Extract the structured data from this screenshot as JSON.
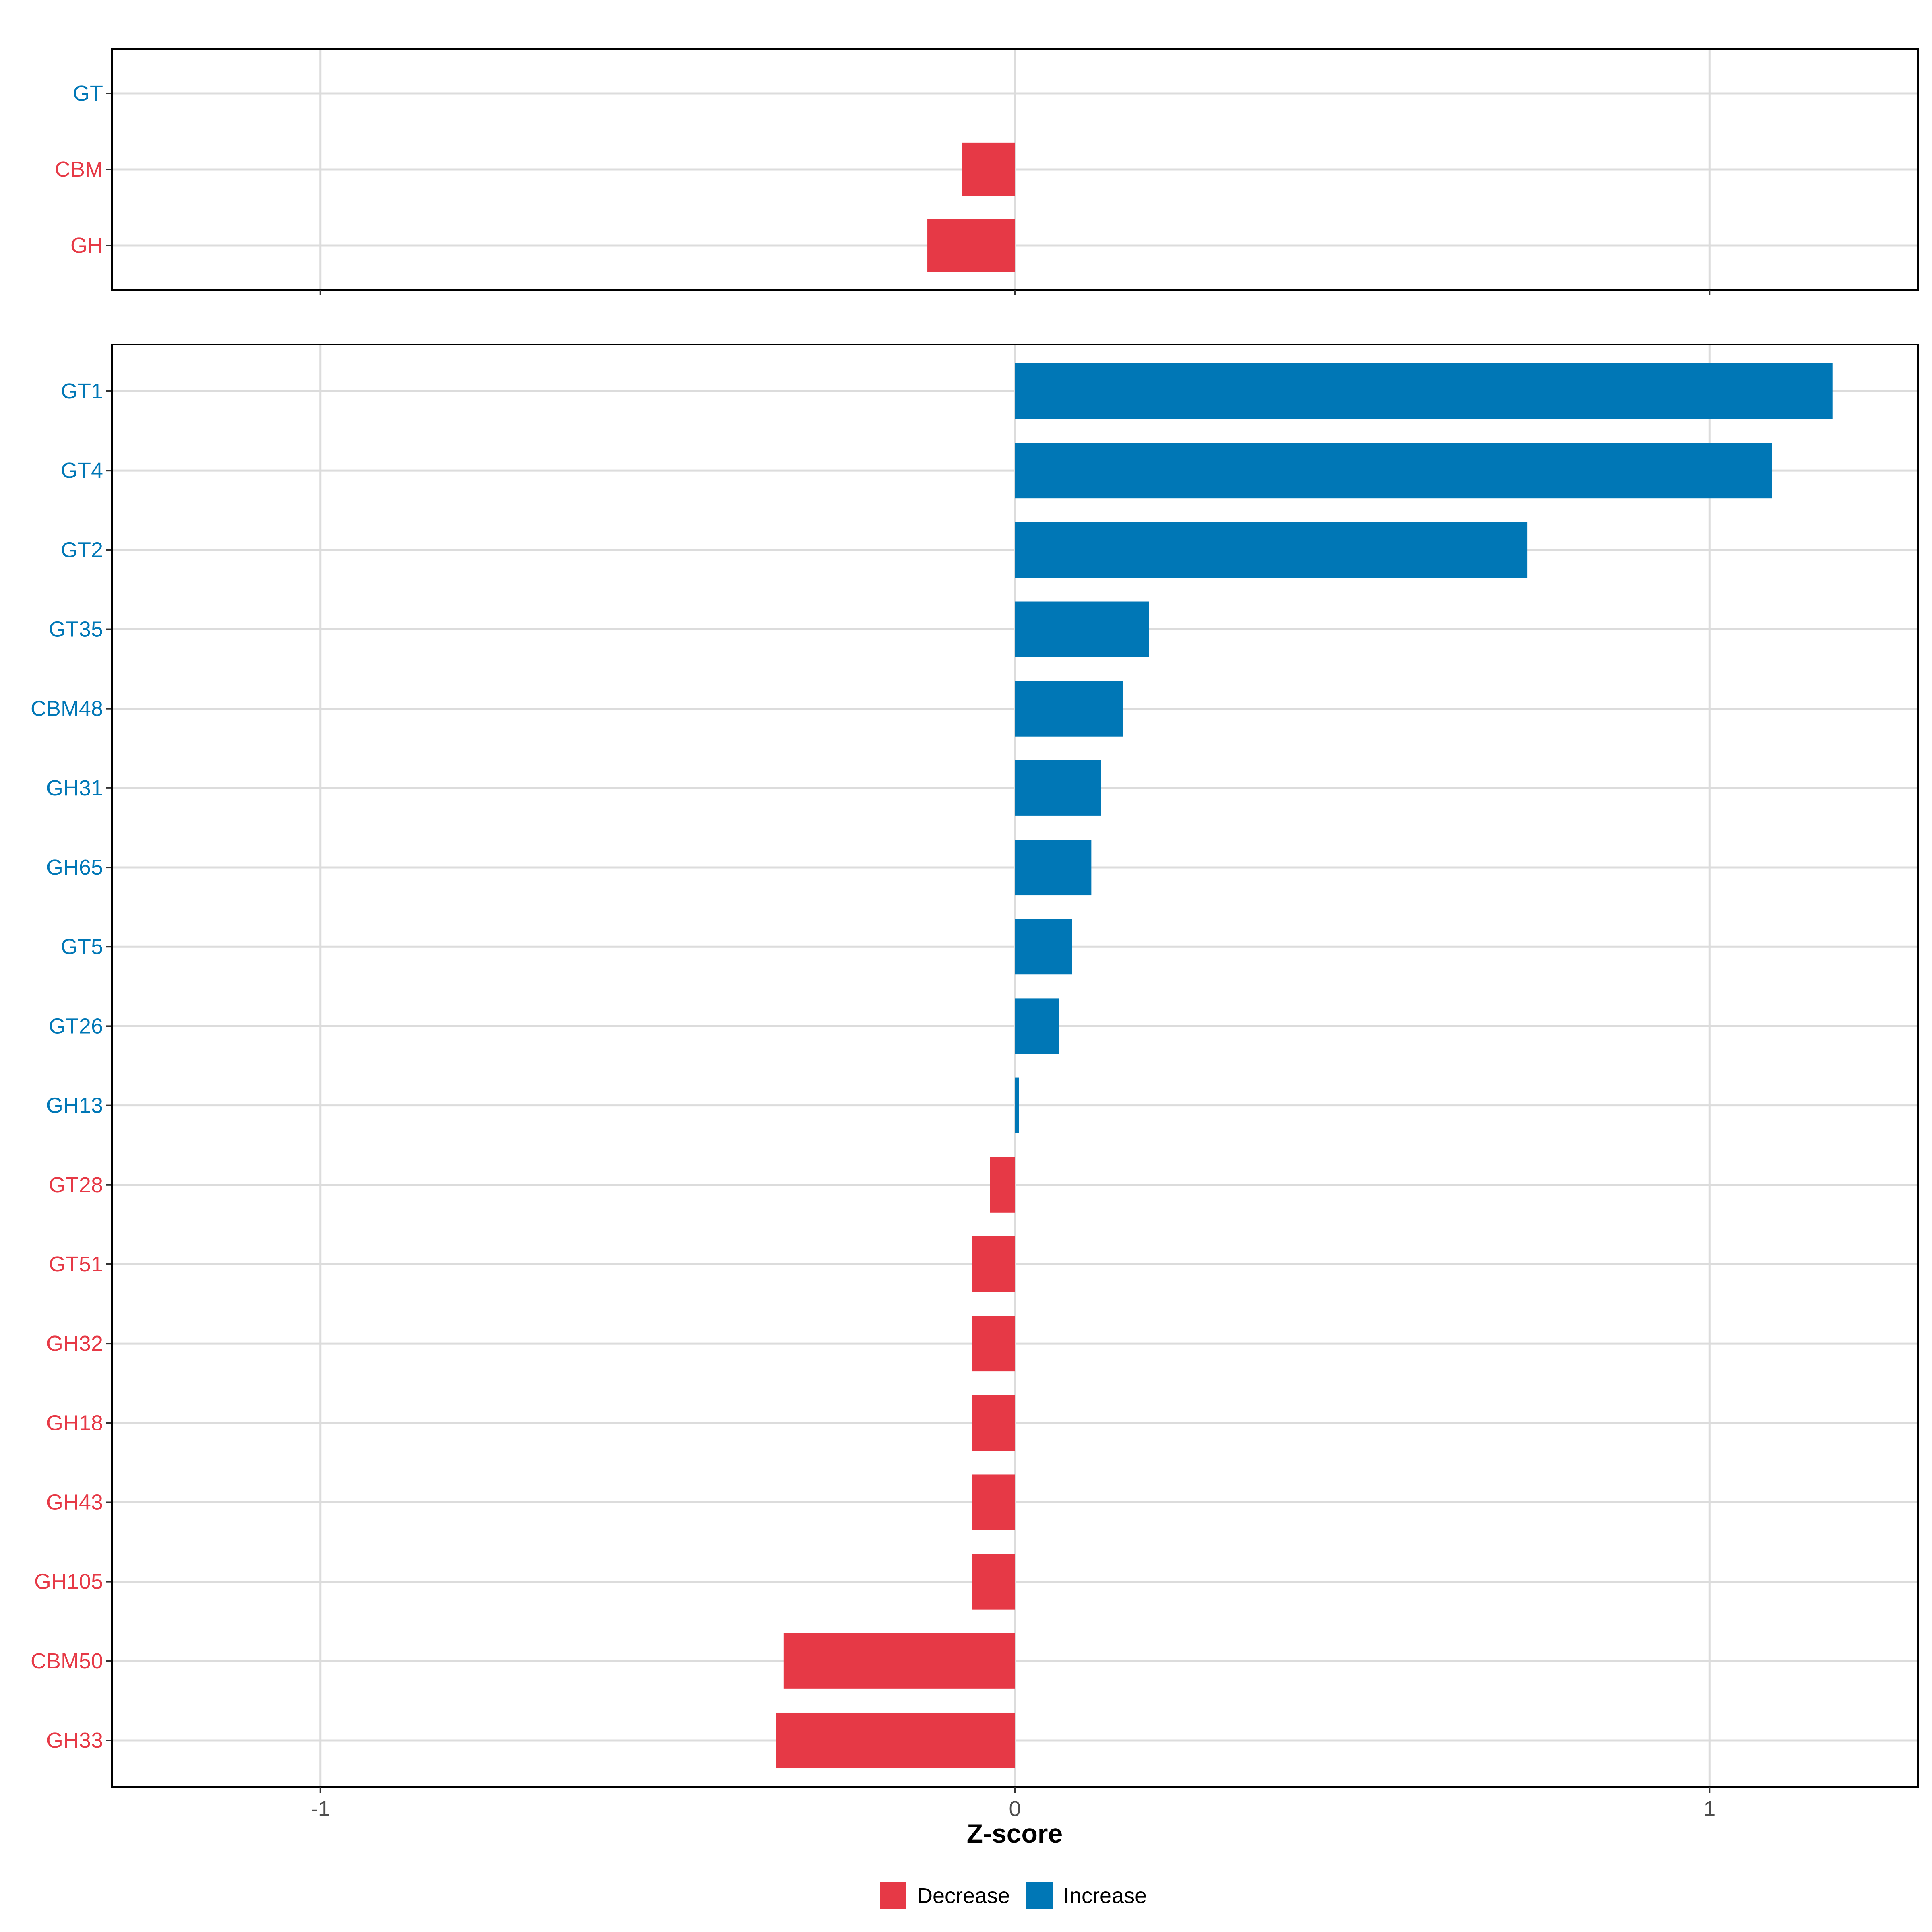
{
  "chart_data": {
    "type": "bar",
    "orientation": "horizontal",
    "xlabel": "Z-score",
    "xlim": [
      -1.3,
      1.3
    ],
    "x_ticks": [
      {
        "value": -1,
        "label": "-1"
      },
      {
        "value": 0,
        "label": "0"
      },
      {
        "value": 1,
        "label": "1"
      }
    ],
    "grid": true,
    "legend_position": "bottom",
    "legend": [
      {
        "key": "decrease",
        "label": "Decrease"
      },
      {
        "key": "increase",
        "label": "Increase"
      }
    ],
    "colors": {
      "decrease": "#E63946",
      "increase": "#0077B6"
    },
    "panels": [
      {
        "name": "class-panel",
        "categories": [
          {
            "label": "GT",
            "value": 0.0,
            "direction": "increase"
          },
          {
            "label": "CBM",
            "value": -0.076,
            "direction": "decrease"
          },
          {
            "label": "GH",
            "value": -0.126,
            "direction": "decrease"
          }
        ]
      },
      {
        "name": "family-panel",
        "categories": [
          {
            "label": "GT1",
            "value": 1.177,
            "direction": "increase"
          },
          {
            "label": "GT4",
            "value": 1.09,
            "direction": "increase"
          },
          {
            "label": "GT2",
            "value": 0.738,
            "direction": "increase"
          },
          {
            "label": "GT35",
            "value": 0.193,
            "direction": "increase"
          },
          {
            "label": "CBM48",
            "value": 0.155,
            "direction": "increase"
          },
          {
            "label": "GH31",
            "value": 0.124,
            "direction": "increase"
          },
          {
            "label": "GH65",
            "value": 0.11,
            "direction": "increase"
          },
          {
            "label": "GT5",
            "value": 0.082,
            "direction": "increase"
          },
          {
            "label": "GT26",
            "value": 0.064,
            "direction": "increase"
          },
          {
            "label": "GH13",
            "value": 0.006,
            "direction": "increase"
          },
          {
            "label": "GT28",
            "value": -0.036,
            "direction": "decrease"
          },
          {
            "label": "GT51",
            "value": -0.062,
            "direction": "decrease"
          },
          {
            "label": "GH32",
            "value": -0.062,
            "direction": "decrease"
          },
          {
            "label": "GH18",
            "value": -0.062,
            "direction": "decrease"
          },
          {
            "label": "GH43",
            "value": -0.062,
            "direction": "decrease"
          },
          {
            "label": "GH105",
            "value": -0.062,
            "direction": "decrease"
          },
          {
            "label": "CBM50",
            "value": -0.333,
            "direction": "decrease"
          },
          {
            "label": "GH33",
            "value": -0.344,
            "direction": "decrease"
          }
        ]
      }
    ]
  }
}
